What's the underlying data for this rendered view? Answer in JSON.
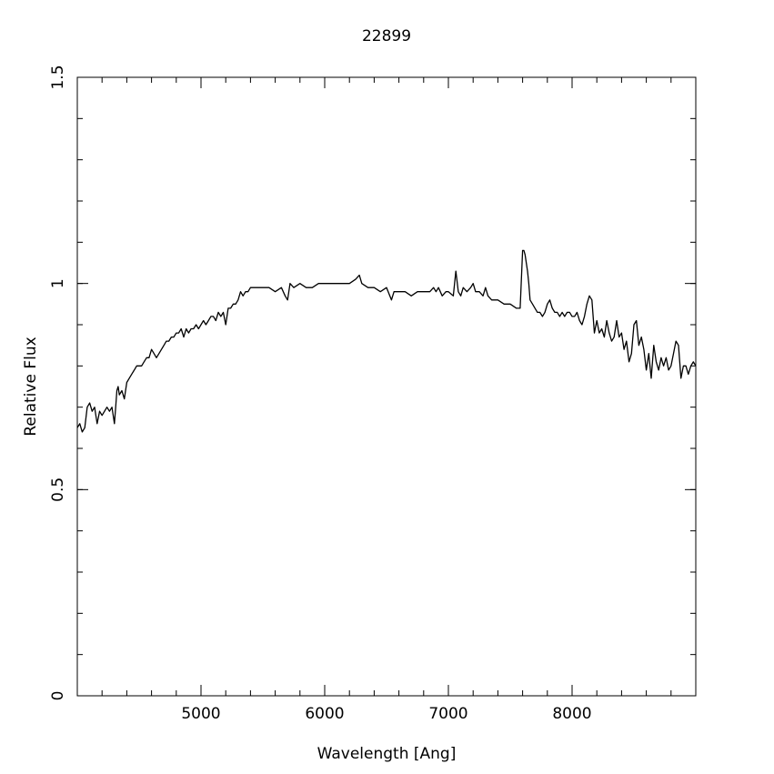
{
  "chart_data": {
    "type": "line",
    "title": "22899",
    "xlabel": "Wavelength [Ang]",
    "ylabel": "Relative Flux",
    "xlim": [
      4000,
      9000
    ],
    "ylim": [
      0,
      1.5
    ],
    "x_ticks": [
      {
        "value": 5000,
        "label": "5000"
      },
      {
        "value": 6000,
        "label": "6000"
      },
      {
        "value": 7000,
        "label": "7000"
      },
      {
        "value": 8000,
        "label": "8000"
      }
    ],
    "y_ticks": [
      {
        "value": 0,
        "label": "0"
      },
      {
        "value": 0.5,
        "label": "0.5"
      },
      {
        "value": 1,
        "label": "1"
      },
      {
        "value": 1.5,
        "label": "1.5"
      }
    ],
    "x_minor_step": 200,
    "y_minor_step": 0.1,
    "grid": false,
    "legend": "none",
    "line_color": "#000000",
    "series": [
      {
        "x": [
          4000,
          4020,
          4040,
          4060,
          4080,
          4100,
          4120,
          4140,
          4160,
          4180,
          4200,
          4220,
          4240,
          4260,
          4280,
          4300,
          4310,
          4320,
          4330,
          4340,
          4360,
          4380,
          4400,
          4420,
          4440,
          4460,
          4480,
          4500,
          4520,
          4540,
          4560,
          4580,
          4600,
          4620,
          4640,
          4660,
          4680,
          4700,
          4720,
          4740,
          4760,
          4780,
          4800,
          4820,
          4840,
          4860,
          4880,
          4900,
          4920,
          4940,
          4960,
          4980,
          5000,
          5020,
          5040,
          5060,
          5080,
          5100,
          5120,
          5140,
          5160,
          5180,
          5200,
          5220,
          5240,
          5260,
          5280,
          5300,
          5320,
          5340,
          5360,
          5380,
          5400,
          5450,
          5500,
          5550,
          5600,
          5650,
          5680,
          5700,
          5720,
          5750,
          5800,
          5850,
          5900,
          5950,
          6000,
          6050,
          6100,
          6150,
          6200,
          6250,
          6280,
          6300,
          6350,
          6400,
          6450,
          6500,
          6540,
          6560,
          6580,
          6600,
          6650,
          6700,
          6750,
          6800,
          6850,
          6880,
          6900,
          6920,
          6950,
          6980,
          7000,
          7040,
          7060,
          7080,
          7100,
          7120,
          7150,
          7180,
          7200,
          7220,
          7250,
          7280,
          7300,
          7320,
          7350,
          7400,
          7450,
          7500,
          7550,
          7580,
          7600,
          7610,
          7620,
          7640,
          7650,
          7660,
          7680,
          7700,
          7720,
          7740,
          7760,
          7780,
          7800,
          7820,
          7840,
          7860,
          7880,
          7900,
          7920,
          7940,
          7960,
          7980,
          8000,
          8020,
          8040,
          8060,
          8080,
          8100,
          8120,
          8140,
          8160,
          8180,
          8200,
          8220,
          8240,
          8260,
          8280,
          8300,
          8320,
          8340,
          8360,
          8380,
          8400,
          8420,
          8440,
          8460,
          8480,
          8500,
          8520,
          8540,
          8560,
          8580,
          8600,
          8620,
          8640,
          8660,
          8680,
          8700,
          8720,
          8740,
          8760,
          8780,
          8800,
          8820,
          8840,
          8860,
          8880,
          8900,
          8920,
          8940,
          8960,
          8980,
          9000
        ],
        "y": [
          0.65,
          0.66,
          0.64,
          0.65,
          0.7,
          0.71,
          0.69,
          0.7,
          0.66,
          0.69,
          0.68,
          0.69,
          0.7,
          0.69,
          0.7,
          0.66,
          0.7,
          0.74,
          0.75,
          0.73,
          0.74,
          0.72,
          0.76,
          0.77,
          0.78,
          0.79,
          0.8,
          0.8,
          0.8,
          0.81,
          0.82,
          0.82,
          0.84,
          0.83,
          0.82,
          0.83,
          0.84,
          0.85,
          0.86,
          0.86,
          0.87,
          0.87,
          0.88,
          0.88,
          0.89,
          0.87,
          0.89,
          0.88,
          0.89,
          0.89,
          0.9,
          0.89,
          0.9,
          0.91,
          0.9,
          0.91,
          0.92,
          0.92,
          0.91,
          0.93,
          0.92,
          0.93,
          0.9,
          0.94,
          0.94,
          0.95,
          0.95,
          0.96,
          0.98,
          0.97,
          0.98,
          0.98,
          0.99,
          0.99,
          0.99,
          0.99,
          0.98,
          0.99,
          0.97,
          0.96,
          1.0,
          0.99,
          1.0,
          0.99,
          0.99,
          1.0,
          1.0,
          1.0,
          1.0,
          1.0,
          1.0,
          1.01,
          1.02,
          1.0,
          0.99,
          0.99,
          0.98,
          0.99,
          0.96,
          0.98,
          0.98,
          0.98,
          0.98,
          0.97,
          0.98,
          0.98,
          0.98,
          0.99,
          0.98,
          0.99,
          0.97,
          0.98,
          0.98,
          0.97,
          1.03,
          0.98,
          0.97,
          0.99,
          0.98,
          0.99,
          1.0,
          0.98,
          0.98,
          0.97,
          0.99,
          0.97,
          0.96,
          0.96,
          0.95,
          0.95,
          0.94,
          0.94,
          1.08,
          1.08,
          1.07,
          1.03,
          1.0,
          0.96,
          0.95,
          0.94,
          0.93,
          0.93,
          0.92,
          0.93,
          0.95,
          0.96,
          0.94,
          0.93,
          0.93,
          0.92,
          0.93,
          0.92,
          0.93,
          0.93,
          0.92,
          0.92,
          0.93,
          0.91,
          0.9,
          0.92,
          0.95,
          0.97,
          0.96,
          0.88,
          0.91,
          0.88,
          0.89,
          0.87,
          0.91,
          0.88,
          0.86,
          0.87,
          0.91,
          0.87,
          0.88,
          0.84,
          0.86,
          0.81,
          0.83,
          0.9,
          0.91,
          0.85,
          0.87,
          0.84,
          0.79,
          0.83,
          0.77,
          0.85,
          0.81,
          0.79,
          0.82,
          0.8,
          0.82,
          0.79,
          0.8,
          0.83,
          0.86,
          0.85,
          0.77,
          0.8,
          0.8,
          0.78,
          0.8,
          0.81,
          0.8
        ]
      }
    ]
  }
}
